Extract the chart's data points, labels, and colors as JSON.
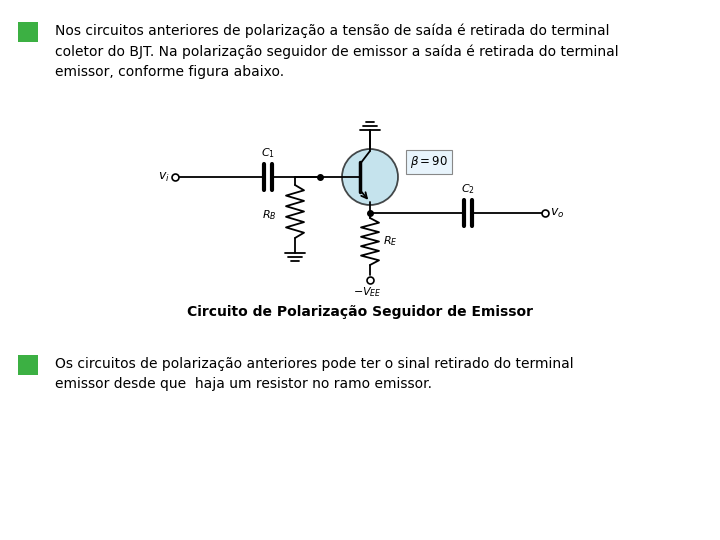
{
  "background_color": "#ffffff",
  "bullet_color": "#3cb043",
  "text1": "Nos circuitos anteriores de polarização a tensão de saída é retirada do terminal\ncoletor do BJT. Na polarização seguidor de emissor a saída é retirada do terminal\nemissor, conforme figura abaixo.",
  "text2": "Os circuitos de polarização anteriores pode ter o sinal retirado do terminal\nemissor desde que  haja um resistor no ramo emissor.",
  "caption": "Circuito de Polarização Seguidor de Emissor",
  "font_size_text": 10.0,
  "font_size_caption": 10.0
}
